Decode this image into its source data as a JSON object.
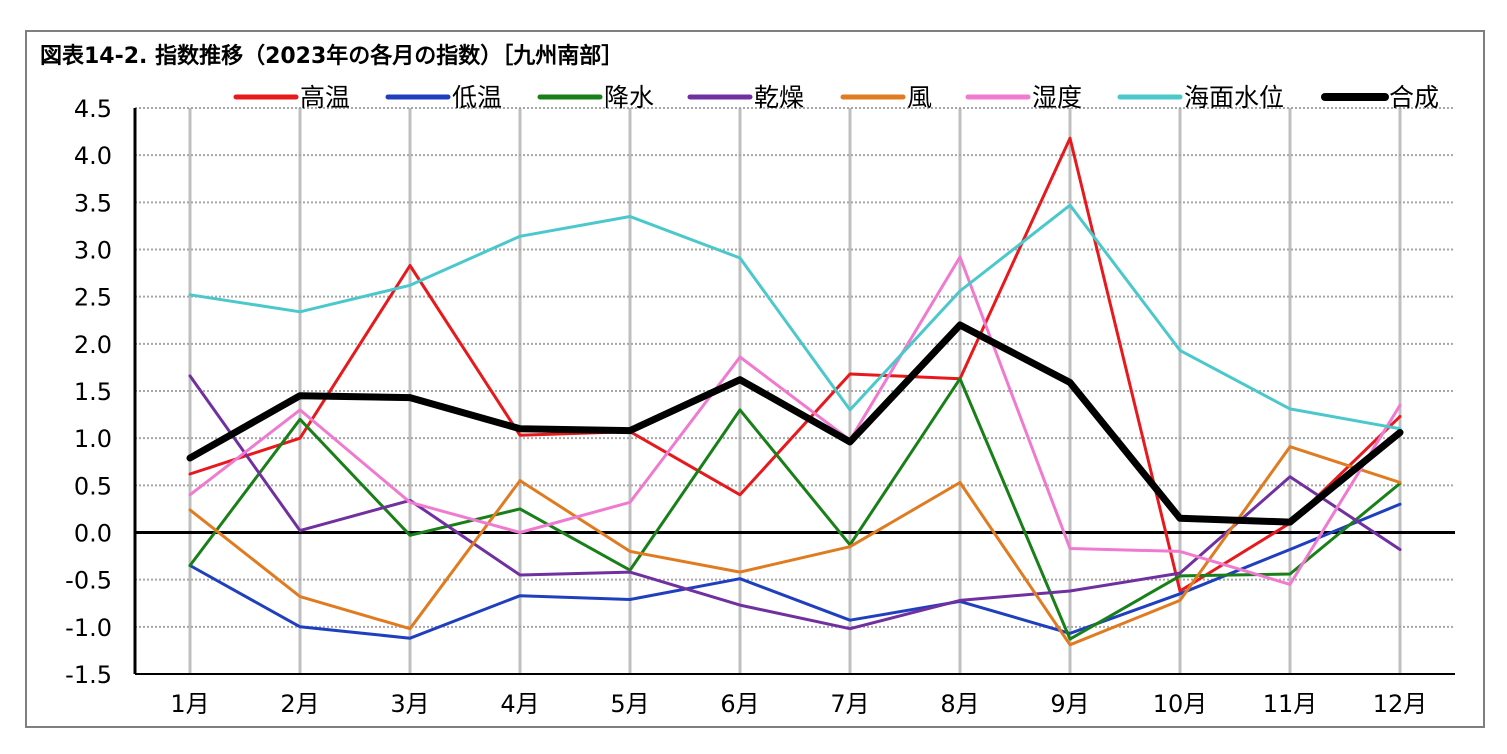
{
  "chart_data": {
    "type": "line",
    "title": "図表14-2. 指数推移（2023年の各月の指数）［九州南部］",
    "xlabel": "",
    "ylabel": "",
    "ylim": [
      -1.5,
      4.5
    ],
    "ytick_step": 0.5,
    "yticks": [
      "4.5",
      "4.0",
      "3.5",
      "3.0",
      "2.5",
      "2.0",
      "1.5",
      "1.0",
      "0.5",
      "0.0",
      "-0.5",
      "-1.0",
      "-1.5"
    ],
    "categories": [
      "1月",
      "2月",
      "3月",
      "4月",
      "5月",
      "6月",
      "7月",
      "8月",
      "9月",
      "10月",
      "11月",
      "12月"
    ],
    "grid": true,
    "legend_position": "top",
    "series": [
      {
        "name": "高温",
        "color": "#e8191c",
        "width": 3,
        "values": [
          0.62,
          1.0,
          2.83,
          1.03,
          1.07,
          0.4,
          1.68,
          1.63,
          4.18,
          -0.62,
          0.1,
          1.23
        ]
      },
      {
        "name": "低温",
        "color": "#1f3fbf",
        "width": 3,
        "values": [
          -0.35,
          -1.0,
          -1.12,
          -0.67,
          -0.71,
          -0.49,
          -0.93,
          -0.73,
          -1.07,
          -0.65,
          -0.18,
          0.3
        ]
      },
      {
        "name": "降水",
        "color": "#198019",
        "width": 3,
        "values": [
          -0.35,
          1.2,
          -0.03,
          0.25,
          -0.4,
          1.3,
          -0.13,
          1.63,
          -1.13,
          -0.46,
          -0.44,
          0.52
        ]
      },
      {
        "name": "乾燥",
        "color": "#7030a0",
        "width": 3,
        "values": [
          1.66,
          0.02,
          0.34,
          -0.45,
          -0.42,
          -0.77,
          -1.02,
          -0.72,
          -0.62,
          -0.43,
          0.59,
          -0.18
        ]
      },
      {
        "name": "風",
        "color": "#e07b20",
        "width": 3,
        "values": [
          0.24,
          -0.68,
          -1.02,
          0.55,
          -0.2,
          -0.42,
          -0.15,
          0.53,
          -1.19,
          -0.72,
          0.91,
          0.53
        ]
      },
      {
        "name": "湿度",
        "color": "#f07ad0",
        "width": 3,
        "values": [
          0.4,
          1.3,
          0.32,
          0.0,
          0.32,
          1.86,
          0.98,
          2.92,
          -0.17,
          -0.2,
          -0.55,
          1.35
        ]
      },
      {
        "name": "海面水位",
        "color": "#4bc8cb",
        "width": 3,
        "values": [
          2.52,
          2.34,
          2.62,
          3.14,
          3.35,
          2.91,
          1.3,
          2.56,
          3.47,
          1.93,
          1.31,
          1.1
        ]
      },
      {
        "name": "合成",
        "color": "#000000",
        "width": 7,
        "values": [
          0.79,
          1.45,
          1.43,
          1.1,
          1.08,
          1.62,
          0.96,
          2.2,
          1.59,
          0.15,
          0.11,
          1.06
        ]
      }
    ]
  }
}
